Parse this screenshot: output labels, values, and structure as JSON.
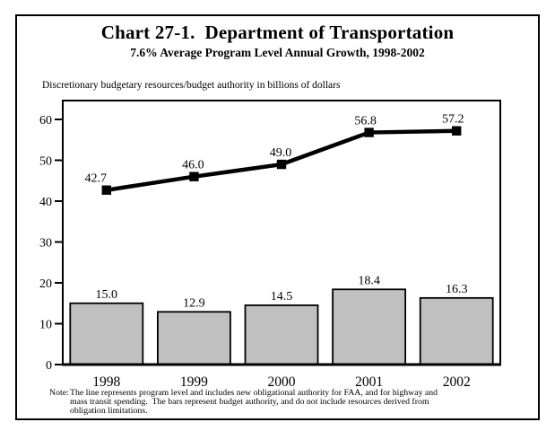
{
  "header": {
    "title": "Chart 27-1.  Department of Transportation",
    "subtitle": "7.6% Average Program Level Annual Growth, 1998-2002"
  },
  "caption": "Discretionary budgetary resources/budget authority in billions of dollars",
  "note": {
    "label": "Note:",
    "lines": [
      "The line represents program level and includes new obligational authority for FAA, and for highway and",
      "mass transit spending.  The bars represent budget authority, and do not include resources derived from",
      "obligation limitations."
    ]
  },
  "chart_data": {
    "type": "bar+line",
    "title": "Chart 27-1. Department of Transportation",
    "subtitle": "7.6% Average Program Level Annual Growth, 1998-2002",
    "ylabel": "Discretionary budgetary resources/budget authority in billions of dollars",
    "categories": [
      "1998",
      "1999",
      "2000",
      "2001",
      "2002"
    ],
    "series": [
      {
        "name": "Program level (line)",
        "type": "line",
        "values": [
          42.7,
          46.0,
          49.0,
          56.8,
          57.2
        ]
      },
      {
        "name": "Budget authority (bars)",
        "type": "bar",
        "values": [
          15.0,
          12.9,
          14.5,
          18.4,
          16.3
        ]
      }
    ],
    "ylim": [
      0,
      60
    ],
    "ytick_step": 10,
    "grid": false,
    "legend": "none",
    "colors": {
      "bar_fill": "#c0c0c0",
      "bar_stroke": "#000000",
      "line": "#000000",
      "marker": "#000000",
      "text": "#000000",
      "frame": "#000000"
    }
  }
}
